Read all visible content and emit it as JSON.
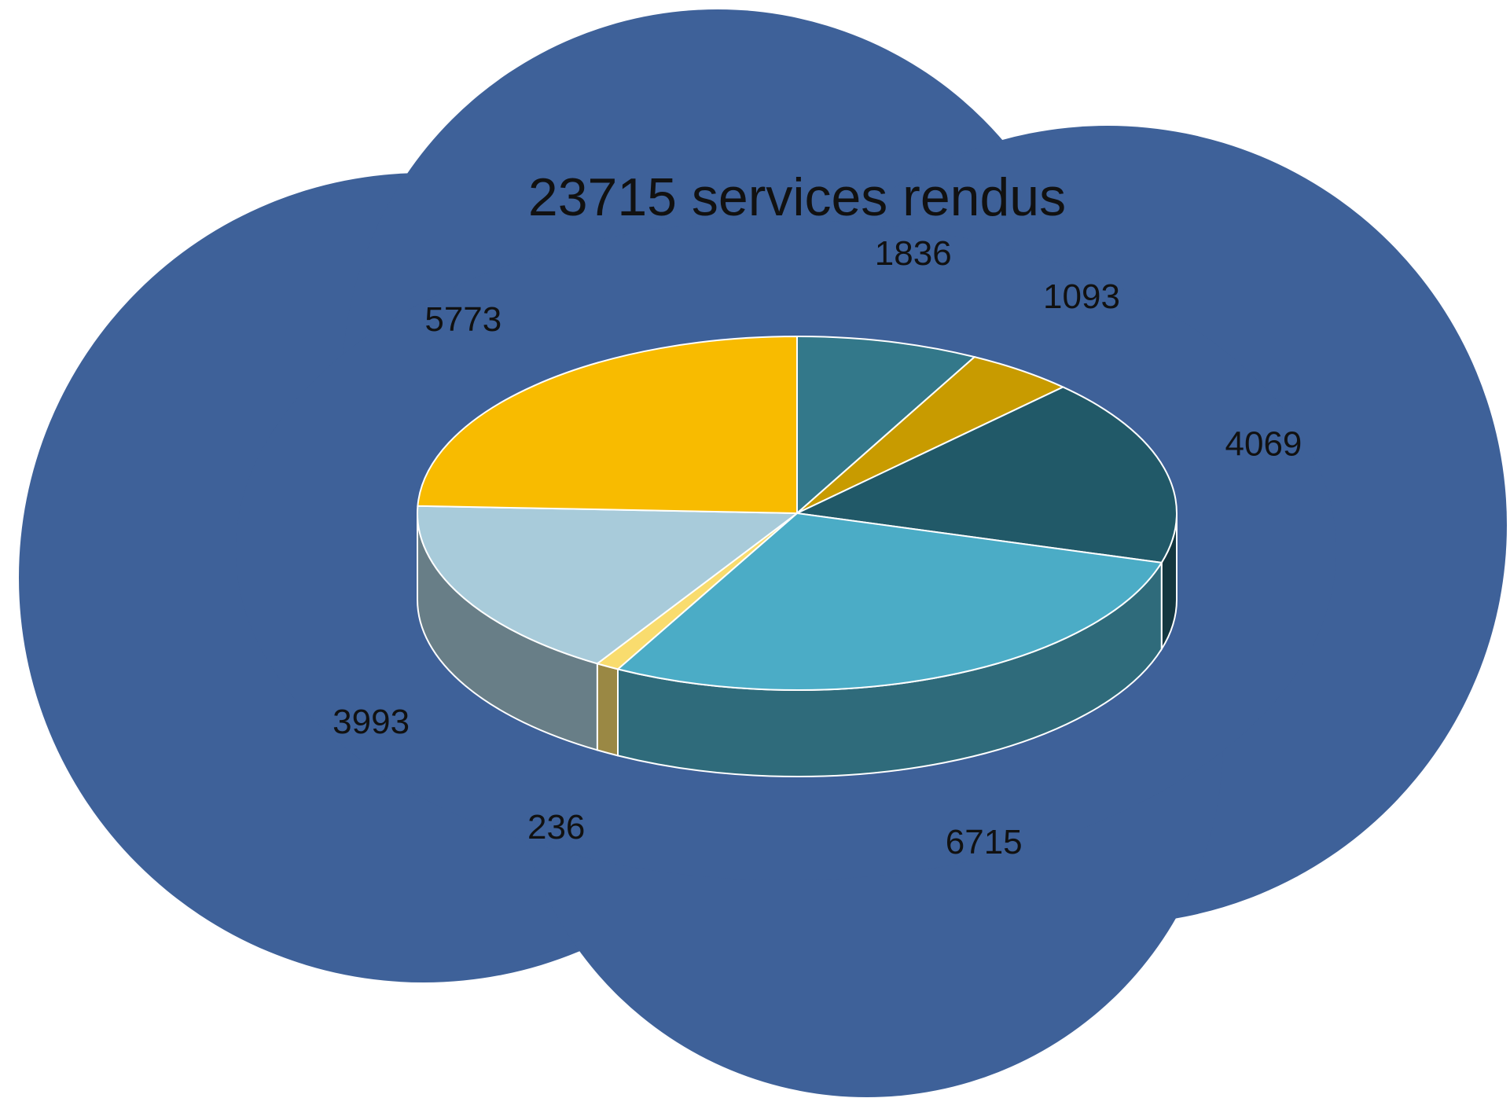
{
  "chart_data": {
    "type": "pie",
    "title": "23715 services rendus",
    "values": [
      1836,
      1093,
      4069,
      6715,
      236,
      3993,
      5773
    ],
    "colors": [
      "#33788a",
      "#c89b00",
      "#215968",
      "#4bacc6",
      "#f9dc6e",
      "#a8cbda",
      "#f8bb00"
    ]
  }
}
